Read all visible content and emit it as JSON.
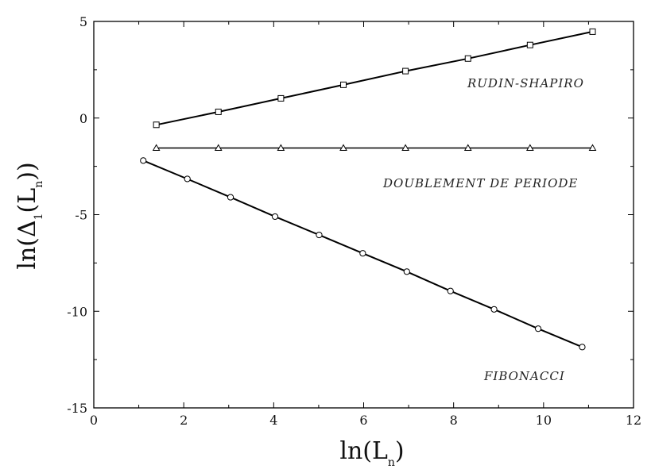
{
  "chart_data": {
    "type": "line",
    "title": "",
    "xlabel": {
      "main": "ln(L",
      "sub": "n",
      "close": ")"
    },
    "ylabel": {
      "main": "ln(Δ",
      "sub1": "1",
      "mid": "(L",
      "sub2": "n",
      "close": "))"
    },
    "xlim": [
      0,
      12
    ],
    "ylim": [
      -15,
      5
    ],
    "xticks": [
      0,
      2,
      4,
      6,
      8,
      10,
      12
    ],
    "xtick_labels": [
      "0",
      "2",
      "4",
      "6",
      "8",
      "10",
      "12"
    ],
    "yticks": [
      -15,
      -10,
      -5,
      0,
      5
    ],
    "ytick_labels": [
      "-15",
      "-10",
      "-5",
      "0",
      "5"
    ],
    "grid": false,
    "series": [
      {
        "name": "RUDIN-SHAPIRO",
        "marker": "square",
        "x": [
          1.39,
          2.77,
          4.16,
          5.55,
          6.93,
          8.32,
          9.7,
          11.09
        ],
        "y": [
          -0.35,
          0.32,
          1.02,
          1.72,
          2.43,
          3.08,
          3.78,
          4.47
        ]
      },
      {
        "name": "DOUBLEMENT DE PERIODE",
        "marker": "triangle",
        "x": [
          1.39,
          2.77,
          4.16,
          5.55,
          6.93,
          8.32,
          9.7,
          11.09
        ],
        "y": [
          -1.55,
          -1.55,
          -1.55,
          -1.55,
          -1.55,
          -1.55,
          -1.55,
          -1.55
        ]
      },
      {
        "name": "FIBONACCI",
        "marker": "circle",
        "x": [
          1.1,
          2.08,
          3.04,
          4.03,
          5.01,
          5.98,
          6.96,
          7.93,
          8.9,
          9.88,
          10.86
        ],
        "y": [
          -2.2,
          -3.15,
          -4.1,
          -5.1,
          -6.05,
          -7.0,
          -7.95,
          -8.95,
          -9.9,
          -10.9,
          -11.85
        ]
      }
    ]
  }
}
